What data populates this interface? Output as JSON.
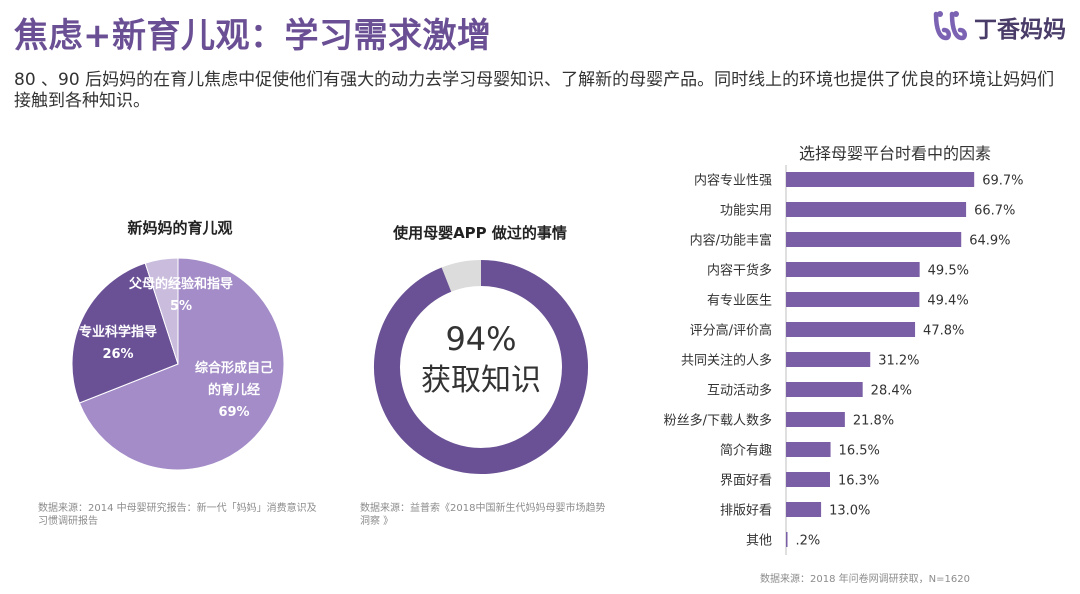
{
  "title": "焦虑+新育儿观：学习需求激增",
  "logo": {
    "text": "丁香妈妈",
    "accent": "#7b62b3"
  },
  "subtitle": "80 、90 后妈妈的在育儿焦虑中促使他们有强大的动力去学习母婴知识、了解新的母婴产品。同时线上的环境也提供了优良的环境让妈妈们接触到各种知识。",
  "colors": {
    "primary": "#7a5ea6",
    "dark": "#6a5196",
    "light": "#a38cc7",
    "pale": "#c9bcdd",
    "gray": "#dcdcdc"
  },
  "chart_data": [
    {
      "type": "pie",
      "title": "新妈妈的育儿观",
      "slices": [
        {
          "label_lines": [
            "综合形成自己",
            "的育儿经"
          ],
          "value_label": "69%",
          "value": 69
        },
        {
          "label_lines": [
            "专业科学指导"
          ],
          "value_label": "26%",
          "value": 26
        },
        {
          "label_lines": [
            "父母的经验和指导"
          ],
          "value_label": "5%",
          "value": 5
        }
      ],
      "source": "数据来源：2014 中母婴研究报告：新一代「妈妈」消费意识及习惯调研报告"
    },
    {
      "type": "pie",
      "title": "使用母婴APP 做过的事情",
      "center_value": "94%",
      "center_label": "获取知识",
      "value": 94,
      "source": "数据来源：益普索《2018中国新生代妈妈母婴市场趋势洞察 》"
    },
    {
      "type": "bar",
      "title": "选择母婴平台时看中的因素",
      "categories": [
        "内容专业性强",
        "功能实用",
        "内容/功能丰富",
        "内容干货多",
        "有专业医生",
        "评分高/评价高",
        "共同关注的人多",
        "互动活动多",
        "粉丝多/下载人数多",
        "简介有趣",
        "界面好看",
        "排版好看",
        "其他"
      ],
      "values": [
        69.7,
        66.7,
        64.9,
        49.5,
        49.4,
        47.8,
        31.2,
        28.4,
        21.8,
        16.5,
        16.3,
        13.0,
        0.2
      ],
      "value_labels": [
        "69.7%",
        "66.7%",
        "64.9%",
        "49.5%",
        "49.4%",
        "47.8%",
        "31.2%",
        "28.4%",
        "21.8%",
        "16.5%",
        "16.3%",
        "13.0%",
        ".2%"
      ],
      "source": "数据来源：2018 年问卷网调研获取，N=1620"
    }
  ]
}
